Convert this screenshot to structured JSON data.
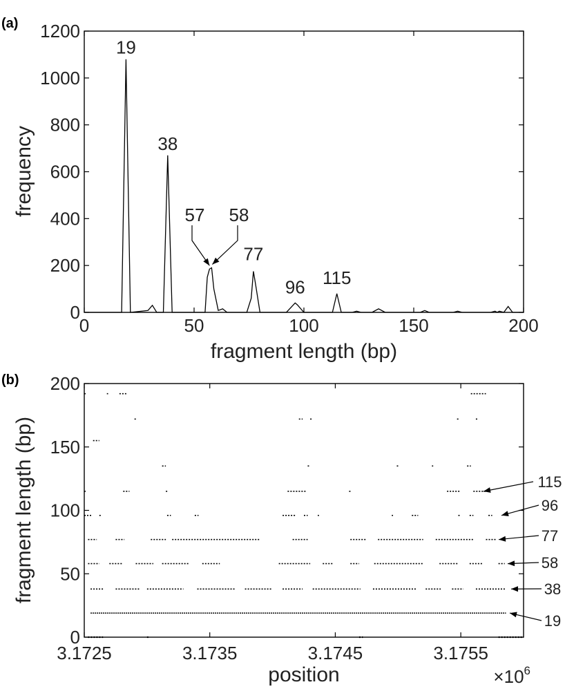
{
  "chart_data": [
    {
      "panel_label": "(a)",
      "type": "line",
      "xlabel": "fragment length (bp)",
      "ylabel": "frequency",
      "xlim": [
        0,
        200
      ],
      "ylim": [
        0,
        1200
      ],
      "xticks": [
        0,
        50,
        100,
        150,
        200
      ],
      "yticks": [
        0,
        200,
        400,
        600,
        800,
        1000,
        1200
      ],
      "grid": false,
      "series": [
        {
          "x": [
            0,
            17,
            19,
            21,
            29,
            31,
            33,
            36,
            38,
            40,
            55,
            56,
            57,
            58,
            59,
            61,
            63,
            65,
            74,
            76,
            77,
            78,
            80,
            92,
            95,
            96,
            97,
            100,
            113,
            115,
            117,
            122,
            124,
            126,
            131,
            134,
            137,
            153,
            155,
            157,
            168,
            170,
            172,
            185,
            187,
            188,
            189,
            191,
            193,
            195,
            200
          ],
          "y": [
            0,
            0,
            1080,
            0,
            8,
            30,
            0,
            0,
            670,
            0,
            0,
            150,
            185,
            190,
            100,
            8,
            15,
            0,
            0,
            60,
            175,
            120,
            0,
            0,
            30,
            40,
            32,
            0,
            0,
            80,
            0,
            0,
            5,
            0,
            0,
            15,
            0,
            0,
            8,
            0,
            0,
            5,
            0,
            0,
            5,
            0,
            5,
            0,
            25,
            0,
            0
          ]
        }
      ],
      "annotations": [
        {
          "text": "19",
          "x": 19,
          "y": 1080
        },
        {
          "text": "38",
          "x": 38,
          "y": 670
        },
        {
          "text": "57",
          "x": 57,
          "y": 185
        },
        {
          "text": "58",
          "x": 58,
          "y": 190
        },
        {
          "text": "77",
          "x": 77,
          "y": 175
        },
        {
          "text": "96",
          "x": 96,
          "y": 40
        },
        {
          "text": "115",
          "x": 115,
          "y": 80
        }
      ]
    },
    {
      "panel_label": "(b)",
      "type": "scatter",
      "xlabel": "position",
      "ylabel": "fragment length (bp)",
      "xlim": [
        3.1725,
        3.176
      ],
      "ylim": [
        0,
        200
      ],
      "xticks": [
        3.1725,
        3.1735,
        3.1745,
        3.1755
      ],
      "xtick_labels": [
        "3.1725",
        "3.1735",
        "3.1745",
        "3.1755"
      ],
      "yticks": [
        0,
        50,
        100,
        150,
        200
      ],
      "x_multiplier_base": "×10",
      "x_multiplier_exp": "6",
      "grid": false,
      "bands": [
        {
          "y": 19,
          "ranges": [
            [
              3.17255,
              3.17586
            ]
          ]
        },
        {
          "y": 38,
          "ranges": [
            [
              3.17255,
              3.17266
            ],
            [
              3.17275,
              3.17294
            ],
            [
              3.173,
              3.17329
            ],
            [
              3.1734,
              3.1737
            ],
            [
              3.17378,
              3.17399
            ],
            [
              3.17408,
              3.17424
            ],
            [
              3.17432,
              3.1747
            ],
            [
              3.1748,
              3.17515
            ],
            [
              3.17522,
              3.17534
            ],
            [
              3.17543,
              3.17552
            ],
            [
              3.17562,
              3.17586
            ]
          ]
        },
        {
          "y": 58,
          "ranges": [
            [
              3.17253,
              3.17262
            ],
            [
              3.1727,
              3.17281
            ],
            [
              3.17291,
              3.17305
            ],
            [
              3.17312,
              3.17333
            ],
            [
              3.17344,
              3.17358
            ],
            [
              3.17405,
              3.1743
            ],
            [
              3.1744,
              3.17448
            ],
            [
              3.17462,
              3.17469
            ],
            [
              3.17481,
              3.1752
            ],
            [
              3.17533,
              3.17548
            ],
            [
              3.17557,
              3.17568
            ],
            [
              3.1758,
              3.17585
            ]
          ]
        },
        {
          "y": 77,
          "ranges": [
            [
              3.17253,
              3.1726
            ],
            [
              3.17275,
              3.17282
            ],
            [
              3.17303,
              3.17315
            ],
            [
              3.1732,
              3.1739
            ],
            [
              3.17416,
              3.17428
            ],
            [
              3.17462,
              3.17475
            ],
            [
              3.17484,
              3.1752
            ],
            [
              3.1753,
              3.1756
            ],
            [
              3.1757,
              3.17578
            ]
          ]
        },
        {
          "y": 96,
          "ranges": [
            [
              3.1725,
              3.17256
            ],
            [
              3.17262,
              3.17264
            ],
            [
              3.17316,
              3.17319
            ],
            [
              3.17338,
              3.17341
            ],
            [
              3.17408,
              3.17418
            ],
            [
              3.17425,
              3.17428
            ],
            [
              3.17436,
              3.17437
            ],
            [
              3.17495,
              3.17496
            ],
            [
              3.17511,
              3.17516
            ],
            [
              3.17548,
              3.1755
            ],
            [
              3.17557,
              3.1756
            ],
            [
              3.17572,
              3.17575
            ]
          ]
        },
        {
          "y": 115,
          "ranges": [
            [
              3.1725,
              3.17252
            ],
            [
              3.17281,
              3.17286
            ],
            [
              3.17315,
              3.17317
            ],
            [
              3.17412,
              3.17427
            ],
            [
              3.17461,
              3.17463
            ],
            [
              3.17539,
              3.1755
            ],
            [
              3.1756,
              3.17572
            ]
          ]
        },
        {
          "y": 135,
          "ranges": [
            [
              3.17312,
              3.17315
            ],
            [
              3.17428,
              3.1743
            ],
            [
              3.17499,
              3.17501
            ],
            [
              3.17527,
              3.17528
            ],
            [
              3.17555,
              3.17558
            ]
          ]
        },
        {
          "y": 155,
          "ranges": [
            [
              3.17257,
              3.17262
            ]
          ]
        },
        {
          "y": 172,
          "ranges": [
            [
              3.1729,
              3.17292
            ],
            [
              3.17421,
              3.17424
            ],
            [
              3.1743,
              3.17432
            ],
            [
              3.17547,
              3.17549
            ],
            [
              3.17562,
              3.17564
            ]
          ]
        },
        {
          "y": 192,
          "ranges": [
            [
              3.1725,
              3.17252
            ],
            [
              3.17268,
              3.17269
            ],
            [
              3.17278,
              3.17284
            ],
            [
              3.17558,
              3.1757
            ]
          ]
        },
        {
          "y": 0,
          "ranges": [
            [
              3.17253,
              3.17265
            ],
            [
              3.173,
              3.17302
            ],
            [
              3.17469,
              3.17472
            ],
            [
              3.1758,
              3.176
            ]
          ]
        }
      ],
      "annotations": [
        {
          "text": "115",
          "y": 115
        },
        {
          "text": "96",
          "y": 96
        },
        {
          "text": "77",
          "y": 77
        },
        {
          "text": "58",
          "y": 58
        },
        {
          "text": "38",
          "y": 38
        },
        {
          "text": "19",
          "y": 19
        }
      ]
    }
  ]
}
